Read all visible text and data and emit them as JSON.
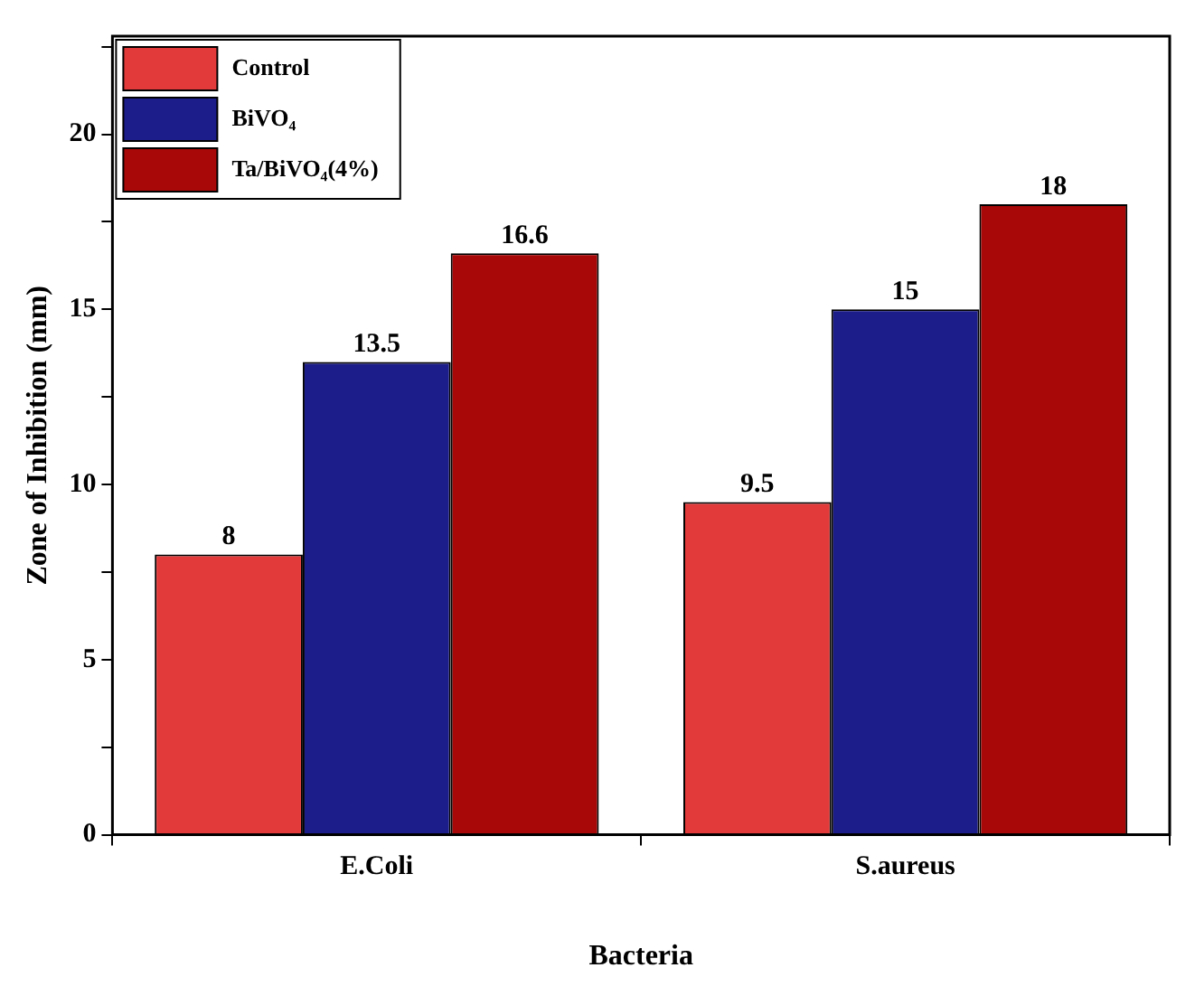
{
  "chart_data": {
    "type": "bar",
    "xlabel": "Bacteria",
    "ylabel": "Zone of Inhibition (mm)",
    "categories": [
      "E.Coli",
      "S.aureus"
    ],
    "series": [
      {
        "name": "Control",
        "color": "#e23a3a",
        "values": [
          8,
          9.5
        ]
      },
      {
        "name": "BiVO₄",
        "color": "#1c1c8a",
        "values": [
          13.5,
          15
        ]
      },
      {
        "name": "Ta/BiVO₄(4%)",
        "color": "#a80808",
        "values": [
          16.6,
          18
        ]
      }
    ],
    "ylim": [
      0,
      22.8
    ],
    "yticks": [
      0,
      {
        "value": 2.5,
        "label": null
      },
      5,
      {
        "value": 7.5,
        "label": null
      },
      10,
      {
        "value": 12.5,
        "label": null
      },
      15,
      {
        "value": 17.5,
        "label": null
      },
      20,
      {
        "value": 22.5,
        "label": null
      }
    ],
    "data_labels": true,
    "legend": "top left",
    "grid": false
  }
}
